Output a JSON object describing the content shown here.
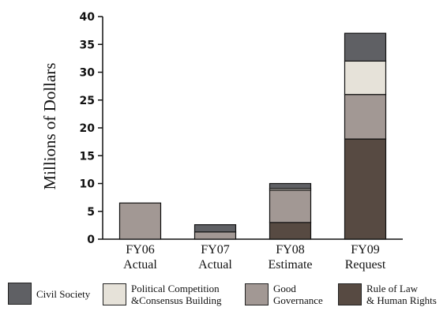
{
  "chart_data": {
    "type": "bar",
    "stacked": true,
    "ylabel": "Millions of Dollars",
    "ylim": [
      0,
      40
    ],
    "yticks": [
      0,
      5,
      10,
      15,
      20,
      25,
      30,
      35,
      40
    ],
    "categories": [
      {
        "line1": "FY06",
        "line2": "Actual"
      },
      {
        "line1": "FY07",
        "line2": "Actual"
      },
      {
        "line1": "FY08",
        "line2": "Estimate"
      },
      {
        "line1": "FY09",
        "line2": "Request"
      }
    ],
    "series": [
      {
        "name": "Rule of Law\n& Human Rights",
        "color": "#574a42",
        "values": [
          0,
          0,
          3,
          18
        ]
      },
      {
        "name": "Good\nGovernance",
        "color": "#a29894",
        "values": [
          6.5,
          1.3,
          5.8,
          8
        ]
      },
      {
        "name": "Political Competition\n&Consensus Building",
        "color": "#e6e2d9",
        "values": [
          0,
          0,
          0.3,
          6
        ]
      },
      {
        "name": "Civil Society",
        "color": "#5f6064",
        "values": [
          0,
          1.3,
          0.9,
          5
        ]
      }
    ],
    "legend_order": [
      3,
      2,
      1,
      0
    ],
    "legend_position": "bottom"
  }
}
